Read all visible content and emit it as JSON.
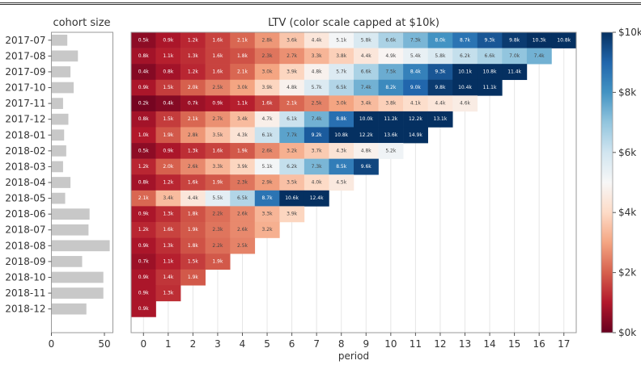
{
  "chart_data": [
    {
      "type": "bar",
      "orientation": "horizontal",
      "title": "cohort size",
      "categories": [
        "2017-07",
        "2017-08",
        "2017-09",
        "2017-10",
        "2017-11",
        "2017-12",
        "2018-01",
        "2018-02",
        "2018-03",
        "2018-04",
        "2018-05",
        "2018-06",
        "2018-07",
        "2018-08",
        "2018-09",
        "2018-10",
        "2018-11",
        "2018-12"
      ],
      "values": [
        15,
        25,
        18,
        21,
        11,
        16,
        12,
        14,
        11,
        18,
        13,
        36,
        35,
        55,
        29,
        49,
        49,
        33
      ],
      "xlabel": "",
      "ylabel": "",
      "xlim": [
        0,
        58
      ],
      "xticks": [
        0,
        50
      ],
      "xtick_labels": [
        "0",
        "50"
      ],
      "bar_color": "#c8c8c8"
    },
    {
      "type": "heatmap",
      "title": "LTV (color scale capped at $10k)",
      "xlabel": "period",
      "ylabel": "",
      "x": [
        0,
        1,
        2,
        3,
        4,
        5,
        6,
        7,
        8,
        9,
        10,
        11,
        12,
        13,
        14,
        15,
        16,
        17
      ],
      "xtick_labels": [
        "0",
        "1",
        "2",
        "3",
        "4",
        "5",
        "6",
        "7",
        "8",
        "9",
        "10",
        "11",
        "12",
        "13",
        "14",
        "15",
        "16",
        "17"
      ],
      "y": [
        "2017-07",
        "2017-08",
        "2017-09",
        "2017-10",
        "2017-11",
        "2017-12",
        "2018-01",
        "2018-02",
        "2018-03",
        "2018-04",
        "2018-05",
        "2018-06",
        "2018-07",
        "2018-08",
        "2018-09",
        "2018-10",
        "2018-11",
        "2018-12"
      ],
      "units": "thousands of dollars",
      "values": [
        [
          0.5,
          0.9,
          1.2,
          1.6,
          2.1,
          2.8,
          3.6,
          4.4,
          5.1,
          5.8,
          6.6,
          7.3,
          8.0,
          8.7,
          9.3,
          9.8,
          10.3,
          10.8
        ],
        [
          0.8,
          1.1,
          1.3,
          1.6,
          1.8,
          2.3,
          2.7,
          3.3,
          3.8,
          4.4,
          4.9,
          5.4,
          5.8,
          6.2,
          6.6,
          7.0,
          7.4
        ],
        [
          0.4,
          0.8,
          1.2,
          1.6,
          2.1,
          3.0,
          3.9,
          4.8,
          5.7,
          6.6,
          7.5,
          8.4,
          9.3,
          10.1,
          10.8,
          11.4
        ],
        [
          0.9,
          1.5,
          2.0,
          2.5,
          3.0,
          3.9,
          4.8,
          5.7,
          6.5,
          7.4,
          8.2,
          9.0,
          9.8,
          10.4,
          11.1
        ],
        [
          0.2,
          0.4,
          0.7,
          0.9,
          1.1,
          1.6,
          2.1,
          2.5,
          3.0,
          3.4,
          3.8,
          4.1,
          4.4,
          4.6
        ],
        [
          0.8,
          1.5,
          2.1,
          2.7,
          3.4,
          4.7,
          6.1,
          7.4,
          8.8,
          10.0,
          11.2,
          12.2,
          13.1
        ],
        [
          1.0,
          1.9,
          2.8,
          3.5,
          4.3,
          6.1,
          7.7,
          9.2,
          10.8,
          12.2,
          13.6,
          14.9
        ],
        [
          0.5,
          0.9,
          1.3,
          1.6,
          1.9,
          2.6,
          3.2,
          3.7,
          4.3,
          4.8,
          5.2
        ],
        [
          1.2,
          2.0,
          2.6,
          3.3,
          3.9,
          5.1,
          6.2,
          7.3,
          8.5,
          9.6
        ],
        [
          0.8,
          1.2,
          1.6,
          1.9,
          2.3,
          2.9,
          3.5,
          4.0,
          4.5
        ],
        [
          2.1,
          3.4,
          4.4,
          5.5,
          6.5,
          8.7,
          10.6,
          12.4
        ],
        [
          0.9,
          1.3,
          1.8,
          2.2,
          2.6,
          3.3,
          3.9
        ],
        [
          1.2,
          1.6,
          1.9,
          2.3,
          2.6,
          3.2
        ],
        [
          0.9,
          1.3,
          1.8,
          2.2,
          2.5
        ],
        [
          0.7,
          1.1,
          1.5,
          1.9
        ],
        [
          0.9,
          1.4,
          1.9
        ],
        [
          0.9,
          1.3
        ],
        [
          0.9
        ]
      ],
      "value_label_suffix": "k",
      "colormap": "RdBu",
      "color_range": [
        0,
        10
      ],
      "colorbar": {
        "ticks": [
          0,
          2,
          4,
          6,
          8,
          10
        ],
        "tick_labels": [
          "$0k",
          "$2k",
          "$4k",
          "$6k",
          "$8k",
          "$10k"
        ],
        "placement": "right"
      },
      "grid": true
    }
  ]
}
